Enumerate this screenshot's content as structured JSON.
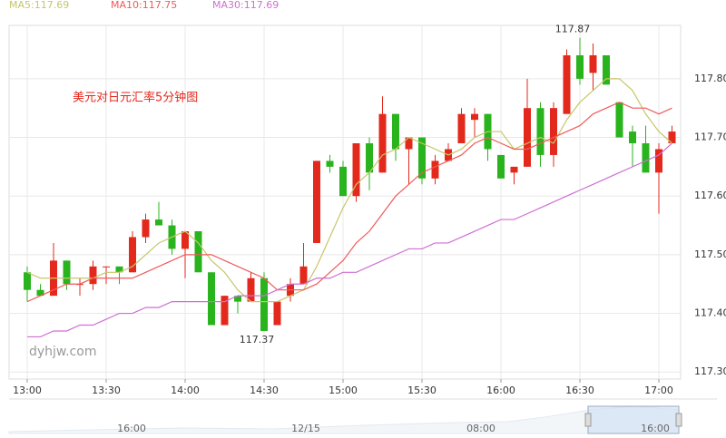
{
  "chart_data": {
    "type": "candlestick",
    "title": "美元对日元汇率5分钟图",
    "watermark": "dyhjw.com",
    "categories": [
      "13:00",
      null,
      null,
      null,
      null,
      null,
      "13:30",
      null,
      null,
      null,
      null,
      null,
      "14:00",
      null,
      null,
      null,
      null,
      null,
      "14:30",
      null,
      null,
      null,
      null,
      null,
      "15:00",
      null,
      null,
      null,
      null,
      null,
      "15:30",
      null,
      null,
      null,
      null,
      null,
      "16:00",
      null,
      null,
      null,
      null,
      null,
      "16:30",
      null,
      null,
      null,
      null,
      null,
      "17:00",
      null
    ],
    "candles": {
      "open": [
        117.47,
        117.44,
        117.43,
        117.49,
        117.45,
        117.45,
        117.48,
        117.48,
        117.47,
        117.53,
        117.56,
        117.55,
        117.51,
        117.54,
        117.47,
        117.38,
        117.43,
        117.42,
        117.46,
        117.38,
        117.43,
        117.45,
        117.52,
        117.66,
        117.65,
        117.6,
        117.69,
        117.64,
        117.74,
        117.68,
        117.7,
        117.63,
        117.66,
        117.69,
        117.73,
        117.74,
        117.67,
        117.64,
        117.65,
        117.75,
        117.67,
        117.74,
        117.84,
        117.81,
        117.84,
        117.76,
        117.71,
        117.69,
        117.64,
        117.69
      ],
      "high": [
        117.48,
        117.45,
        117.52,
        117.49,
        117.46,
        117.49,
        117.48,
        117.48,
        117.54,
        117.57,
        117.59,
        117.56,
        117.54,
        117.54,
        117.47,
        117.43,
        117.43,
        117.47,
        117.47,
        117.42,
        117.46,
        117.52,
        117.66,
        117.67,
        117.66,
        117.69,
        117.7,
        117.77,
        117.74,
        117.7,
        117.7,
        117.67,
        117.69,
        117.75,
        117.75,
        117.74,
        117.67,
        117.65,
        117.8,
        117.76,
        117.76,
        117.85,
        117.87,
        117.86,
        117.84,
        117.76,
        117.72,
        117.72,
        117.69,
        117.72
      ],
      "low": [
        117.42,
        117.43,
        117.43,
        117.44,
        117.43,
        117.44,
        117.45,
        117.45,
        117.47,
        117.52,
        117.55,
        117.5,
        117.46,
        117.47,
        117.38,
        117.38,
        117.4,
        117.42,
        117.37,
        117.38,
        117.42,
        117.45,
        117.52,
        117.64,
        117.6,
        117.59,
        117.61,
        117.64,
        117.66,
        117.62,
        117.62,
        117.62,
        117.66,
        117.69,
        117.7,
        117.66,
        117.63,
        117.62,
        117.65,
        117.65,
        117.65,
        117.74,
        117.79,
        117.78,
        117.79,
        117.7,
        117.65,
        117.64,
        117.57,
        117.69
      ],
      "close": [
        117.44,
        117.43,
        117.49,
        117.45,
        117.45,
        117.48,
        117.48,
        117.47,
        117.53,
        117.56,
        117.55,
        117.51,
        117.54,
        117.47,
        117.38,
        117.43,
        117.42,
        117.46,
        117.37,
        117.42,
        117.45,
        117.48,
        117.66,
        117.65,
        117.6,
        117.69,
        117.64,
        117.74,
        117.68,
        117.7,
        117.63,
        117.66,
        117.68,
        117.74,
        117.74,
        117.68,
        117.63,
        117.65,
        117.75,
        117.67,
        117.75,
        117.84,
        117.8,
        117.84,
        117.79,
        117.7,
        117.69,
        117.64,
        117.68,
        117.71
      ]
    },
    "up_color": "#e3281c",
    "down_color": "#29b31d",
    "series": [
      {
        "name": "MA5:117.69",
        "color": "#c6c66a",
        "values": [
          117.47,
          117.46,
          117.46,
          117.46,
          117.46,
          117.46,
          117.47,
          117.47,
          117.48,
          117.5,
          117.52,
          117.53,
          117.54,
          117.52,
          117.49,
          117.47,
          117.44,
          117.42,
          117.42,
          117.42,
          117.43,
          117.44,
          117.48,
          117.53,
          117.58,
          117.62,
          117.64,
          117.67,
          117.68,
          117.7,
          117.69,
          117.68,
          117.67,
          117.68,
          117.7,
          117.71,
          117.71,
          117.68,
          117.69,
          117.7,
          117.69,
          117.73,
          117.76,
          117.78,
          117.8,
          117.8,
          117.78,
          117.74,
          117.71,
          117.69
        ]
      },
      {
        "name": "MA10:117.75",
        "color": "#f05a5a",
        "values": [
          117.42,
          117.43,
          117.44,
          117.45,
          117.45,
          117.46,
          117.46,
          117.46,
          117.46,
          117.47,
          117.48,
          117.49,
          117.5,
          117.5,
          117.5,
          117.49,
          117.48,
          117.47,
          117.46,
          117.44,
          117.44,
          117.44,
          117.45,
          117.47,
          117.49,
          117.52,
          117.54,
          117.57,
          117.6,
          117.62,
          117.64,
          117.65,
          117.66,
          117.67,
          117.69,
          117.7,
          117.69,
          117.68,
          117.68,
          117.69,
          117.7,
          117.71,
          117.72,
          117.74,
          117.75,
          117.76,
          117.75,
          117.75,
          117.74,
          117.75
        ]
      },
      {
        "name": "MA30:117.69",
        "color": "#cf6fd4",
        "values": [
          117.36,
          117.36,
          117.37,
          117.37,
          117.38,
          117.38,
          117.39,
          117.4,
          117.4,
          117.41,
          117.41,
          117.42,
          117.42,
          117.42,
          117.42,
          117.42,
          117.43,
          117.43,
          117.43,
          117.44,
          117.45,
          117.45,
          117.46,
          117.46,
          117.47,
          117.47,
          117.48,
          117.49,
          117.5,
          117.51,
          117.51,
          117.52,
          117.52,
          117.53,
          117.54,
          117.55,
          117.56,
          117.56,
          117.57,
          117.58,
          117.59,
          117.6,
          117.61,
          117.62,
          117.63,
          117.64,
          117.65,
          117.66,
          117.67,
          117.69
        ]
      }
    ],
    "ylim": [
      117.288,
      117.891
    ],
    "yticks": [
      {
        "value": 117.3,
        "label": "117.30"
      },
      {
        "value": 117.4,
        "label": "117.40"
      },
      {
        "value": 117.5,
        "label": "117.50"
      },
      {
        "value": 117.6,
        "label": "117.60"
      },
      {
        "value": 117.7,
        "label": "117.70"
      },
      {
        "value": 117.8,
        "label": "117.80"
      }
    ],
    "grid": true,
    "navigator": {
      "labels": [
        "16:00",
        "12/15",
        "08:00",
        "16:00"
      ]
    }
  }
}
